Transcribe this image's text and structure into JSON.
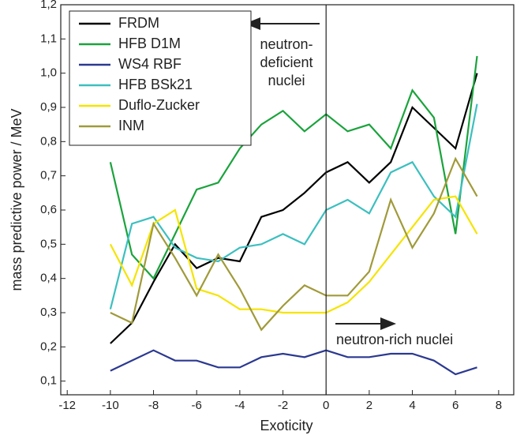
{
  "chart_data": {
    "type": "line",
    "x_label": "Exoticity",
    "y_label": "mass predictive power / MeV",
    "x": [
      -10,
      -9,
      -8,
      -7,
      -6,
      -5,
      -4,
      -3,
      -2,
      -1,
      0,
      1,
      2,
      3,
      4,
      5,
      6,
      7
    ],
    "series": [
      {
        "name": "FRDM",
        "color": "#000000",
        "values": [
          0.21,
          0.27,
          0.39,
          0.5,
          0.43,
          0.46,
          0.45,
          0.58,
          0.6,
          0.65,
          0.71,
          0.74,
          0.68,
          0.74,
          0.9,
          0.84,
          0.78,
          1.0
        ]
      },
      {
        "name": "HFB D1M",
        "color": "#1aa33c",
        "values": [
          0.74,
          0.47,
          0.4,
          0.53,
          0.66,
          0.68,
          0.78,
          0.85,
          0.89,
          0.83,
          0.88,
          0.83,
          0.85,
          0.78,
          0.95,
          0.87,
          0.53,
          1.05
        ]
      },
      {
        "name": "WS4 RBF",
        "color": "#2b3990",
        "values": [
          0.13,
          0.16,
          0.19,
          0.16,
          0.16,
          0.14,
          0.14,
          0.17,
          0.18,
          0.17,
          0.19,
          0.17,
          0.17,
          0.18,
          0.18,
          0.16,
          0.12,
          0.14
        ]
      },
      {
        "name": "HFB BSk21",
        "color": "#3cbfbf",
        "values": [
          0.31,
          0.56,
          0.58,
          0.49,
          0.46,
          0.45,
          0.49,
          0.5,
          0.53,
          0.5,
          0.6,
          0.63,
          0.59,
          0.71,
          0.74,
          0.64,
          0.58,
          0.91
        ]
      },
      {
        "name": "Duflo-Zucker",
        "color": "#f5e400",
        "values": [
          0.5,
          0.38,
          0.56,
          0.6,
          0.37,
          0.35,
          0.31,
          0.31,
          0.3,
          0.3,
          0.3,
          0.33,
          0.39,
          0.47,
          0.55,
          0.63,
          0.64,
          0.53
        ]
      },
      {
        "name": "INM",
        "color": "#a09a3a",
        "values": [
          0.3,
          0.27,
          0.56,
          0.46,
          0.35,
          0.47,
          0.37,
          0.25,
          0.32,
          0.38,
          0.35,
          0.35,
          0.42,
          0.63,
          0.49,
          0.59,
          0.75,
          0.64
        ]
      }
    ],
    "xlim": [
      -12.3,
      8.7
    ],
    "xticks": [
      -12,
      -10,
      -8,
      -6,
      -4,
      -2,
      0,
      2,
      4,
      6,
      8
    ],
    "ylim": [
      0.06,
      1.2
    ],
    "yticks": [
      {
        "value": 0.1,
        "label": "0,1"
      },
      {
        "value": 0.2,
        "label": "0,2"
      },
      {
        "value": 0.3,
        "label": "0,3"
      },
      {
        "value": 0.4,
        "label": "0,4"
      },
      {
        "value": 0.5,
        "label": "0,5"
      },
      {
        "value": 0.6,
        "label": "0,6"
      },
      {
        "value": 0.7,
        "label": "0,7"
      },
      {
        "value": 0.8,
        "label": "0,8"
      },
      {
        "value": 0.9,
        "label": "0,9"
      },
      {
        "value": 1.0,
        "label": "1,0"
      },
      {
        "value": 1.1,
        "label": "1,1"
      },
      {
        "value": 1.2,
        "label": "1,2"
      }
    ],
    "vline": 0,
    "annotations": [
      "neutron-",
      "deficient",
      "nuclei",
      "neutron-rich nuclei"
    ]
  }
}
